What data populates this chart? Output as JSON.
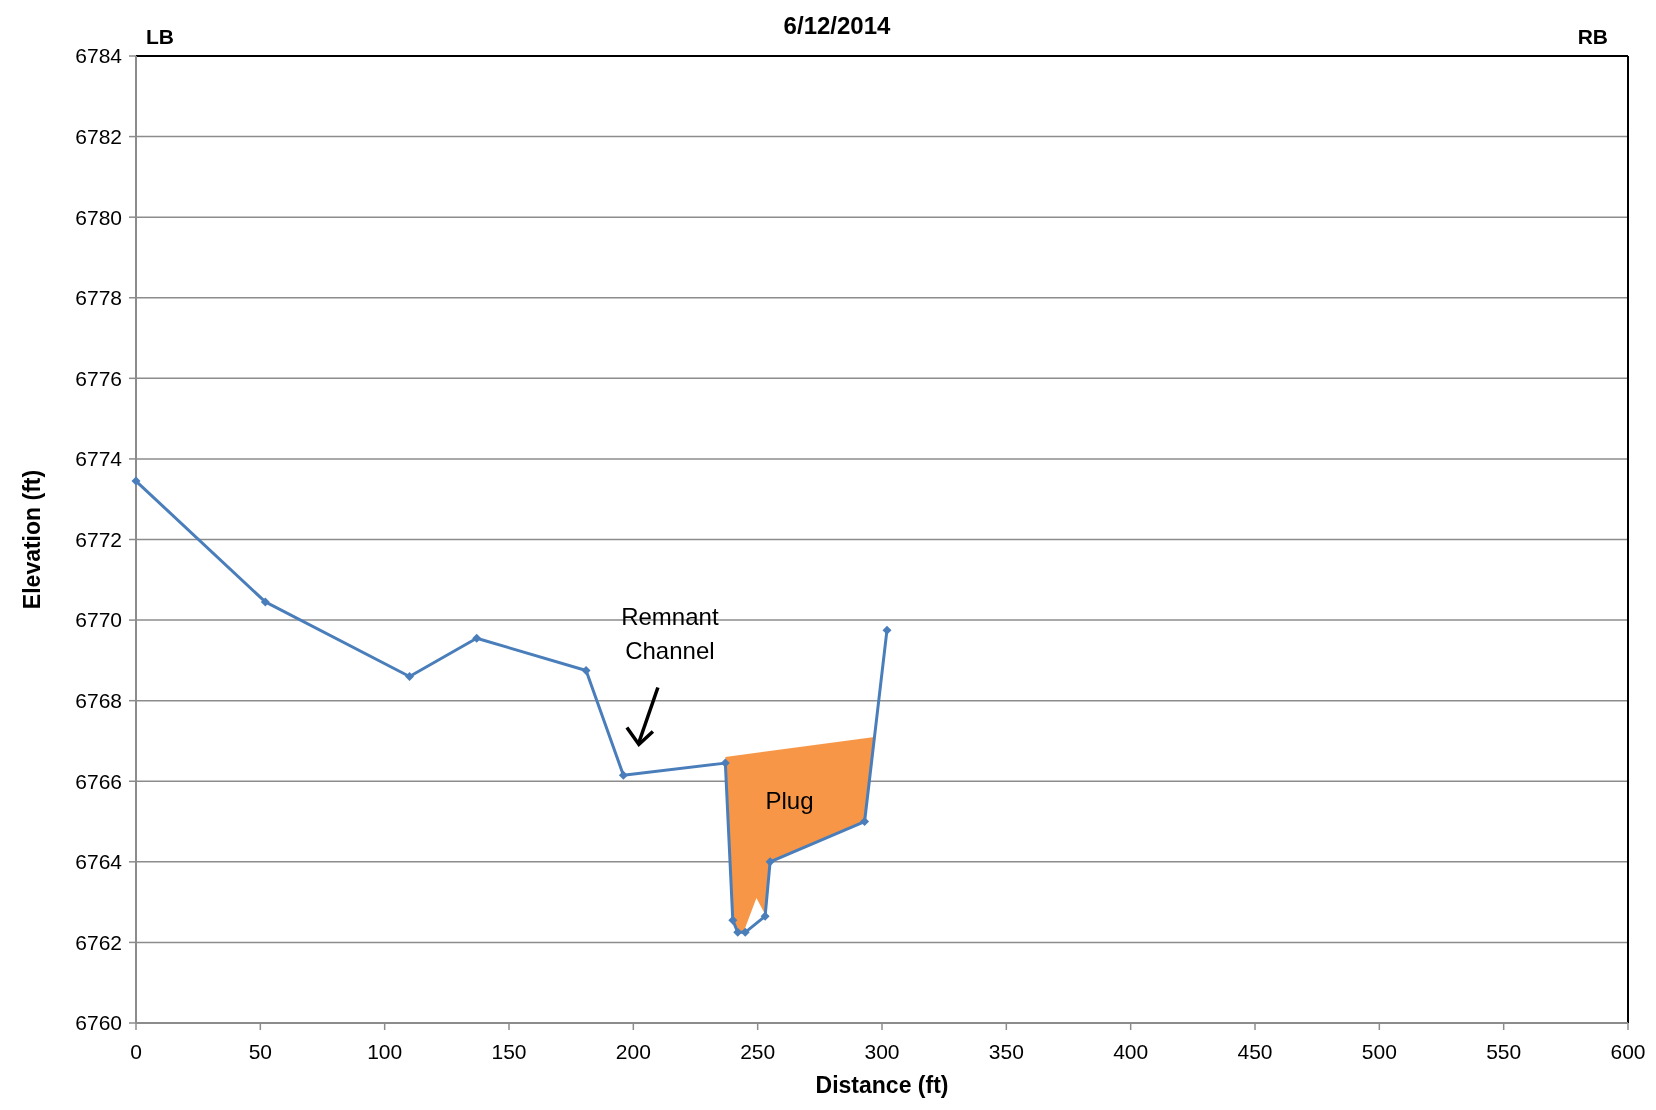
{
  "chart_data": {
    "type": "line",
    "title": "6/12/2014",
    "xlabel": "Distance (ft)",
    "ylabel": "Elevation (ft)",
    "x": [
      0,
      52,
      110,
      137,
      181,
      196,
      237,
      240,
      242,
      245,
      253,
      255,
      293,
      302
    ],
    "series": [
      {
        "color": "#4a7ebb",
        "values": [
          6773.45,
          6770.45,
          6768.6,
          6769.55,
          6768.75,
          6766.15,
          6766.45,
          6762.55,
          6762.25,
          6762.25,
          6762.65,
          6764.0,
          6765.0,
          6769.75
        ]
      }
    ],
    "xlim": [
      0,
      600
    ],
    "xticks": [
      0,
      50,
      100,
      150,
      200,
      250,
      300,
      350,
      400,
      450,
      500,
      550,
      600
    ],
    "ylim": [
      6760,
      6784
    ],
    "yticks": [
      6760,
      6762,
      6764,
      6766,
      6768,
      6770,
      6772,
      6774,
      6776,
      6778,
      6780,
      6782,
      6784
    ],
    "grid": "y",
    "marker": "diamond",
    "line_style": "solid",
    "annotations": [
      "LB",
      "RB",
      "Remnant Channel",
      "Plug"
    ]
  }
}
